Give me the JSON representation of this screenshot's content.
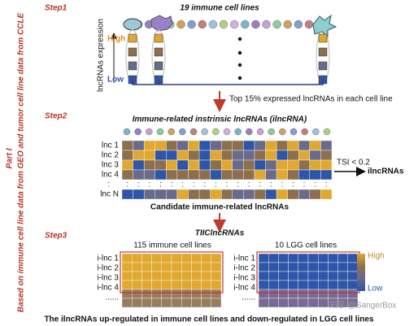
{
  "side": {
    "part": "Part I",
    "description": "Based on immune cell line data from GEO and tumor cell line data from CCLE"
  },
  "step1": {
    "label": "Step1",
    "title": "19 immune cell lines",
    "axis_label": "lncRNAs expression",
    "high": "High",
    "low": "Low",
    "arrow_text": "Top 15% expressed lncRNAs in each cell line"
  },
  "step2": {
    "label": "Step2",
    "title": "Immune-related instrinsic lncRNAs (ilncRNA)",
    "rows": [
      "lnc 1",
      "lnc 2",
      "lnc 3",
      "lnc 4"
    ],
    "ellipsis": ":",
    "last_row": "lnc N",
    "filter": "TSI < 0.2",
    "output": "ilncRNAs",
    "caption": "Candidate immune-related lncRNAs"
  },
  "step3": {
    "label": "Step3",
    "title": "TIIClncRNAs",
    "left_title": "115 immune cell lines",
    "right_title": "10 LGG cell lines",
    "rows": [
      "i-lnc 1",
      "i-lnc 2",
      "i-lnc 3",
      "i-lnc 4"
    ],
    "more": "......",
    "legend_high": "High",
    "legend_low": "Low"
  },
  "footer": "The ilncRNAs up-regulated in immune cell lines and down-regulated in LGG cell lines",
  "watermark": "知乎 @SangerBox"
}
